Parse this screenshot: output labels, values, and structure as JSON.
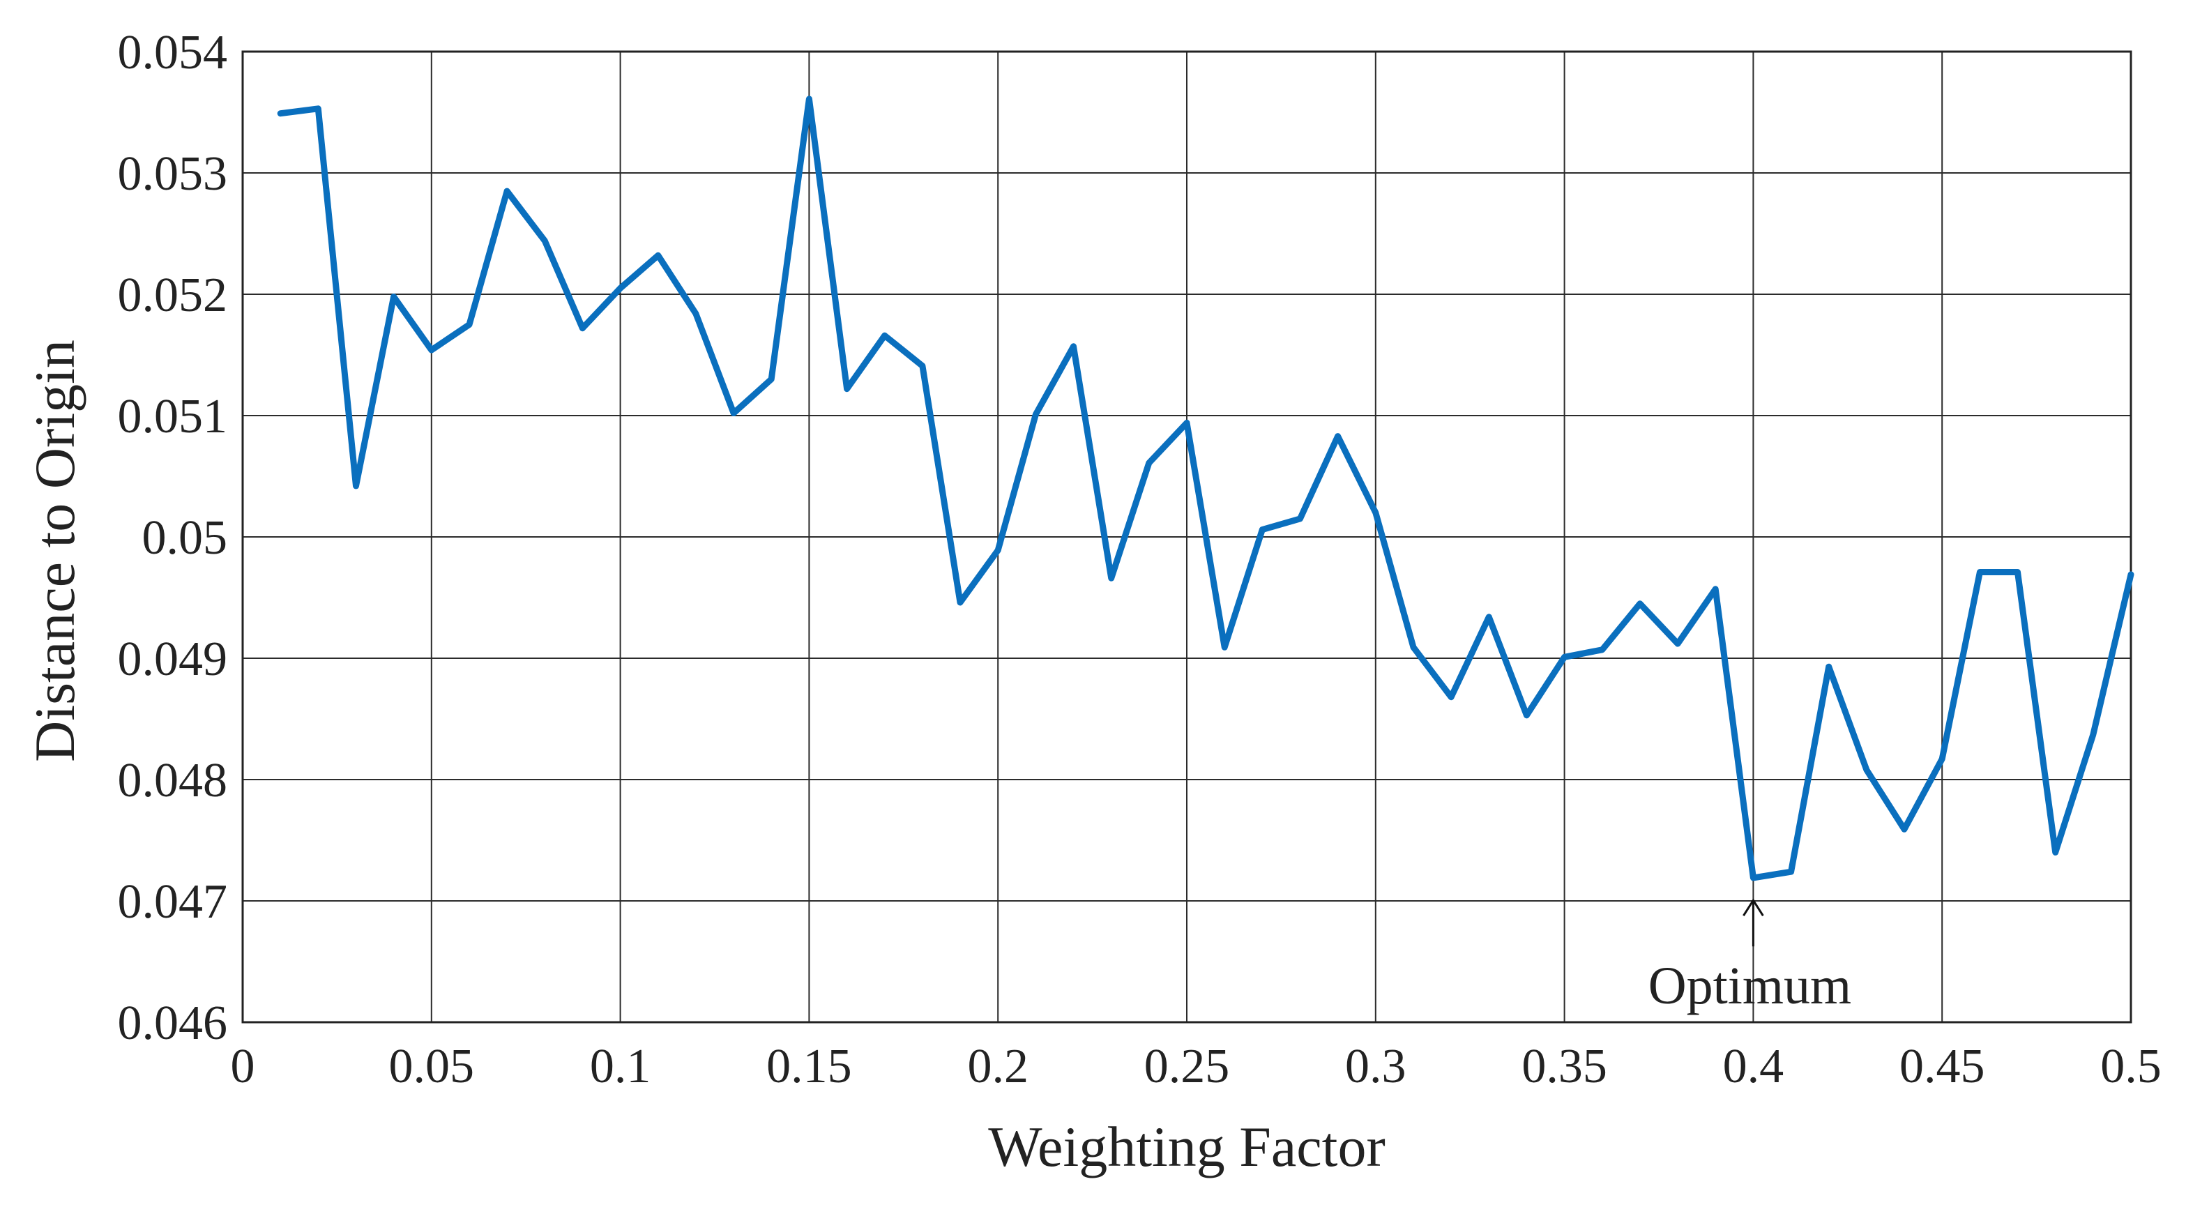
{
  "chart_data": {
    "type": "line",
    "xlabel": "Weighting Factor",
    "ylabel": "Distance to Origin",
    "xlim": [
      0,
      0.5
    ],
    "ylim": [
      0.046,
      0.054
    ],
    "x_ticks": [
      "0",
      "0.05",
      "0.1",
      "0.15",
      "0.2",
      "0.25",
      "0.3",
      "0.35",
      "0.4",
      "0.45",
      "0.5"
    ],
    "y_ticks": [
      "0.046",
      "0.047",
      "0.048",
      "0.049",
      "0.05",
      "0.051",
      "0.052",
      "0.053",
      "0.054"
    ],
    "grid": true,
    "line_color": "#0a6fbe",
    "x": [
      0.01,
      0.02,
      0.03,
      0.04,
      0.05,
      0.06,
      0.07,
      0.08,
      0.09,
      0.1,
      0.11,
      0.12,
      0.13,
      0.14,
      0.15,
      0.16,
      0.17,
      0.18,
      0.19,
      0.2,
      0.21,
      0.22,
      0.23,
      0.24,
      0.25,
      0.26,
      0.27,
      0.28,
      0.29,
      0.3,
      0.31,
      0.32,
      0.33,
      0.34,
      0.35,
      0.36,
      0.37,
      0.38,
      0.39,
      0.4,
      0.41,
      0.42,
      0.43,
      0.44,
      0.45,
      0.46,
      0.47,
      0.48,
      0.49,
      0.5
    ],
    "y": [
      0.05349,
      0.05353,
      0.05042,
      0.05198,
      0.05154,
      0.05175,
      0.05285,
      0.05244,
      0.05172,
      0.05205,
      0.05232,
      0.05184,
      0.05102,
      0.0513,
      0.05361,
      0.05122,
      0.05166,
      0.05141,
      0.04946,
      0.04989,
      0.05101,
      0.05157,
      0.04966,
      0.05061,
      0.05094,
      0.04909,
      0.05006,
      0.05015,
      0.05083,
      0.0502,
      0.04909,
      0.04868,
      0.04934,
      0.04853,
      0.04901,
      0.04907,
      0.04945,
      0.04912,
      0.04957,
      0.04719,
      0.04724,
      0.04893,
      0.04808,
      0.04759,
      0.04817,
      0.04971,
      0.04971,
      0.0474,
      0.04837,
      0.04969
    ],
    "annotation": {
      "text": "Optimum",
      "x": 0.4,
      "y": 0.0472
    }
  }
}
